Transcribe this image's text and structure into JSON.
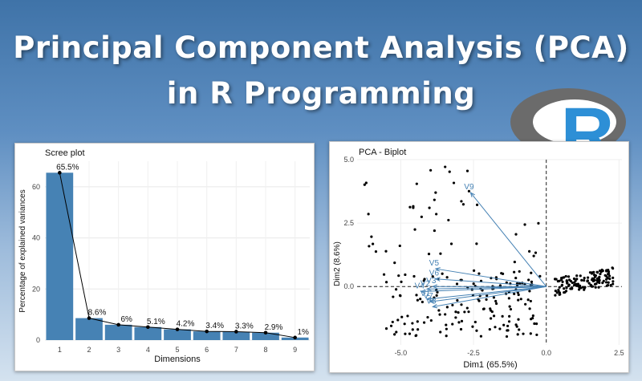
{
  "header": {
    "title_line1": "Principal Component Analysis (PCA)",
    "title_line2": "in R Programming",
    "logo_letter": "R"
  },
  "colors": {
    "bar": "#4682b4",
    "arrow": "#4682b4",
    "point": "#000000",
    "logo_ring": "#6b6b6b",
    "logo_letter": "#2d8fd6"
  },
  "chart_data": [
    {
      "type": "bar",
      "title": "Scree plot",
      "xlabel": "Dimensions",
      "ylabel": "Percentage of explained variances",
      "categories": [
        "1",
        "2",
        "3",
        "4",
        "5",
        "6",
        "7",
        "8",
        "9"
      ],
      "values": [
        65.5,
        8.6,
        6,
        5.1,
        4.2,
        3.4,
        3.3,
        2.9,
        1
      ],
      "data_labels": [
        "65.5%",
        "8.6%",
        "6%",
        "5.1%",
        "4.2%",
        "3.4%",
        "3.3%",
        "2.9%",
        "1%"
      ],
      "overlay": "line-with-points",
      "ylim": [
        0,
        70
      ],
      "yticks": [
        0,
        20,
        40,
        60
      ],
      "grid": true
    },
    {
      "type": "scatter",
      "title": "PCA - Biplot",
      "xlabel": "Dim1 (65.5%)",
      "ylabel": "Dim2 (8.6%)",
      "xlim": [
        -6.5,
        2.6
      ],
      "ylim": [
        -2.3,
        5.0
      ],
      "xticks": [
        -5.0,
        -2.5,
        0.0,
        2.5
      ],
      "yticks": [
        0.0,
        2.5,
        5.0
      ],
      "xtick_labels": [
        "-5.0",
        "-2.5",
        "0.0",
        "2.5"
      ],
      "ytick_labels": [
        "0.0",
        "2.5",
        "5.0"
      ],
      "reference_lines": {
        "x": 0,
        "y": 0
      },
      "grid": true,
      "variables": [
        {
          "name": "V9",
          "x": -2.6,
          "y": 3.7
        },
        {
          "name": "V5",
          "x": -3.8,
          "y": 0.7
        },
        {
          "name": "V6",
          "x": -3.8,
          "y": 0.3
        },
        {
          "name": "V3",
          "x": -3.9,
          "y": 0.0
        },
        {
          "name": "V2",
          "x": -4.1,
          "y": -0.1
        },
        {
          "name": "V4",
          "x": -4.3,
          "y": -0.2
        },
        {
          "name": "V1",
          "x": -4.1,
          "y": -0.5
        },
        {
          "name": "V7",
          "x": -4.0,
          "y": -0.6
        },
        {
          "name": "V8",
          "x": -3.9,
          "y": -0.8
        }
      ]
    }
  ]
}
